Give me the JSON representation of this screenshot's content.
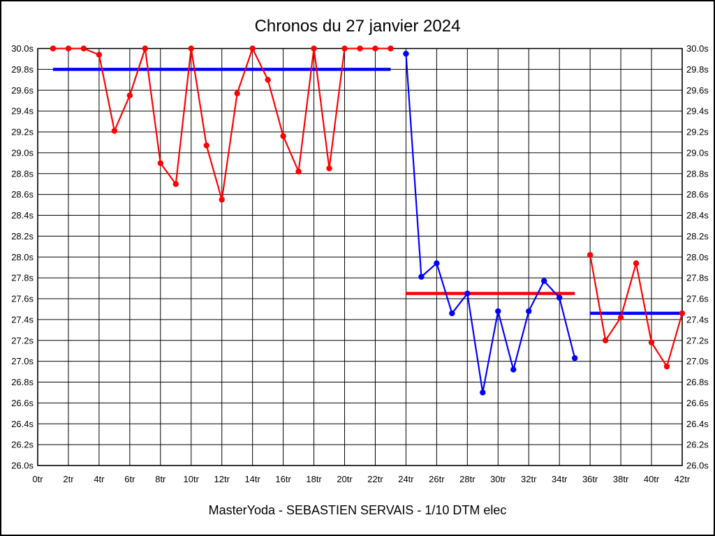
{
  "title": "Chronos du 27 janvier 2024",
  "caption": "MasterYoda - SEBASTIEN SERVAIS - 1/10 DTM elec",
  "colors": {
    "red_series": "#ff0000",
    "blue_series": "#0000ff",
    "grid": "#000000",
    "background": "#ffffff",
    "text": "#000000"
  },
  "chart_data": {
    "type": "line",
    "title": "Chronos du 27 janvier 2024",
    "xlabel": "",
    "ylabel": "",
    "x_unit": "tr",
    "y_unit": "s",
    "xlim": [
      0,
      42
    ],
    "ylim": [
      26.0,
      30.0
    ],
    "grid": true,
    "legend": "none",
    "x_tick_values": [
      0,
      2,
      4,
      6,
      8,
      10,
      12,
      14,
      16,
      18,
      20,
      22,
      24,
      26,
      28,
      30,
      32,
      34,
      36,
      38,
      40,
      42
    ],
    "x_tick_labels": [
      "0tr",
      "2tr",
      "4tr",
      "6tr",
      "8tr",
      "10tr",
      "12tr",
      "14tr",
      "16tr",
      "18tr",
      "20tr",
      "22tr",
      "24tr",
      "26tr",
      "28tr",
      "30tr",
      "32tr",
      "34tr",
      "36tr",
      "38tr",
      "40tr",
      "42tr"
    ],
    "y_tick_values": [
      30.0,
      29.8,
      29.6,
      29.4,
      29.2,
      29.0,
      28.8,
      28.6,
      28.4,
      28.2,
      28.0,
      27.8,
      27.6,
      27.4,
      27.2,
      27.0,
      26.8,
      26.6,
      26.4,
      26.2,
      26.0
    ],
    "y_tick_labels": [
      "30.0s",
      "29.8s",
      "29.6s",
      "29.4s",
      "29.2s",
      "29.0s",
      "28.8s",
      "28.6s",
      "28.4s",
      "28.2s",
      "28.0s",
      "27.8s",
      "27.6s",
      "27.4s",
      "27.2s",
      "27.0s",
      "26.8s",
      "26.6s",
      "26.4s",
      "26.2s",
      "26.0s"
    ],
    "series": [
      {
        "name": "red-stint-1",
        "color": "#ff0000",
        "marker": "circle",
        "x": [
          1,
          2,
          3,
          4,
          5,
          6,
          7,
          8,
          9,
          10,
          11,
          12,
          13,
          14,
          15,
          16,
          17,
          18,
          19,
          20,
          21,
          22,
          23
        ],
        "y": [
          30.0,
          30.0,
          30.0,
          29.94,
          29.21,
          29.55,
          30.0,
          28.9,
          28.7,
          30.0,
          29.07,
          28.55,
          29.57,
          30.0,
          29.7,
          29.16,
          28.82,
          30.0,
          28.85,
          30.0,
          30.0,
          30.0,
          30.0
        ]
      },
      {
        "name": "blue-stint",
        "color": "#0000ff",
        "marker": "circle",
        "x": [
          24,
          25,
          26,
          27,
          28,
          29,
          30,
          31,
          32,
          33,
          34,
          35
        ],
        "y": [
          29.95,
          27.81,
          27.94,
          27.46,
          27.65,
          26.7,
          27.48,
          26.92,
          27.48,
          27.77,
          27.61,
          27.03
        ]
      },
      {
        "name": "red-stint-2",
        "color": "#ff0000",
        "marker": "circle",
        "x": [
          36,
          37,
          38,
          39,
          40,
          41,
          42
        ],
        "y": [
          28.02,
          27.2,
          27.42,
          27.94,
          27.18,
          26.95,
          27.46
        ]
      }
    ],
    "average_lines": [
      {
        "name": "blue-average-stint-1",
        "color": "#0000ff",
        "y": 29.8,
        "x_start": 1,
        "x_end": 23
      },
      {
        "name": "red-average-blue-stint",
        "color": "#ff0000",
        "y": 27.65,
        "x_start": 24,
        "x_end": 35
      },
      {
        "name": "blue-average-stint-2",
        "color": "#0000ff",
        "y": 27.46,
        "x_start": 36,
        "x_end": 42
      }
    ]
  }
}
